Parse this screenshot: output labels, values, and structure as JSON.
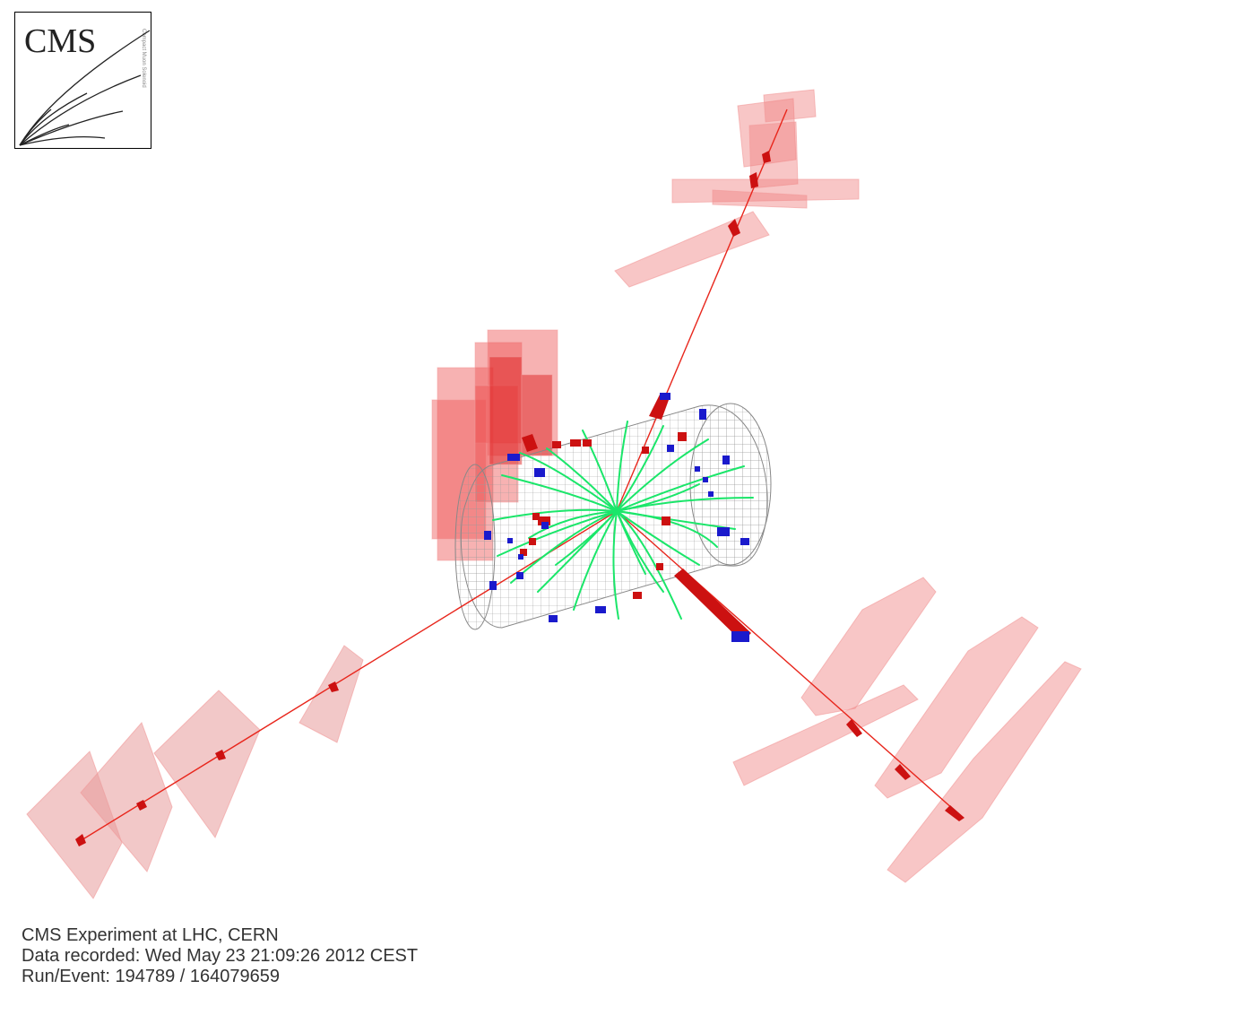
{
  "logo": {
    "text": "CMS",
    "subtitle": "Compact Muon Solenoid"
  },
  "caption": {
    "line1": "CMS Experiment at LHC, CERN",
    "line2": "Data recorded: Wed May 23 21:09:26 2012 CEST",
    "line3": "Run/Event: 194789 / 164079659"
  },
  "colors": {
    "muon_chamber": "#f08080",
    "muon_track": "#e8261c",
    "inner_track": "#00ee55",
    "ecal_deposit": "#cc1111",
    "hcal_deposit": "#1a1acc",
    "tracker_mesh": "#999999"
  }
}
